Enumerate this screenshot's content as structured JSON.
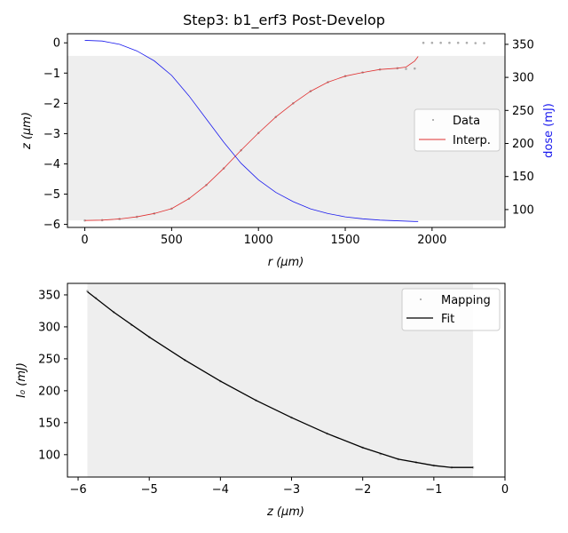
{
  "figure": {
    "title": "Step3: b1_erf3 Post-Develop"
  },
  "chart_data": [
    {
      "type": "scatter",
      "title": "Step3: b1_erf3 Post-Develop",
      "xlabel": "r (μm)",
      "ylabel": "z (μm)",
      "y2label": "dose (mJ)",
      "xlim": [
        -100,
        2420
      ],
      "ylim": [
        -6.1,
        0.3
      ],
      "y2lim": [
        73,
        366
      ],
      "xticks": [
        0,
        500,
        1000,
        1500,
        2000
      ],
      "yticks": [
        0,
        -1,
        -2,
        -3,
        -4,
        -5,
        -6
      ],
      "y2ticks": [
        100,
        150,
        200,
        250,
        300,
        350
      ],
      "shaded_region": {
        "x": [
          -100,
          2420
        ],
        "y": [
          -5.87,
          -0.43
        ]
      },
      "legend": {
        "position": "center-right",
        "entries": [
          "Data",
          "Interp."
        ]
      },
      "series": [
        {
          "name": "Data",
          "style": "dots",
          "color": "#999999",
          "x": [
            0,
            100,
            200,
            300,
            400,
            500,
            600,
            700,
            800,
            900,
            1000,
            1100,
            1200,
            1300,
            1400,
            1500,
            1600,
            1700,
            1800,
            1850,
            1900,
            1950,
            2000,
            2050,
            2100,
            2150,
            2200,
            2250,
            2300
          ],
          "y": [
            -5.87,
            -5.86,
            -5.82,
            -5.75,
            -5.64,
            -5.48,
            -5.15,
            -4.7,
            -4.15,
            -3.55,
            -2.98,
            -2.45,
            -2.0,
            -1.6,
            -1.3,
            -1.1,
            -0.98,
            -0.88,
            -0.84,
            -0.86,
            -0.85,
            0.0,
            0.0,
            0.0,
            0.0,
            0.0,
            0.0,
            -0.01,
            -0.01
          ]
        },
        {
          "name": "Interp.",
          "style": "line",
          "color": "#e03030",
          "x": [
            0,
            100,
            200,
            300,
            400,
            500,
            600,
            700,
            800,
            900,
            1000,
            1100,
            1200,
            1300,
            1400,
            1500,
            1600,
            1700,
            1800,
            1850,
            1900,
            1920
          ],
          "y": [
            -5.87,
            -5.86,
            -5.82,
            -5.75,
            -5.64,
            -5.48,
            -5.15,
            -4.7,
            -4.15,
            -3.55,
            -2.98,
            -2.45,
            -2.0,
            -1.6,
            -1.3,
            -1.1,
            -0.98,
            -0.88,
            -0.84,
            -0.8,
            -0.6,
            -0.45
          ]
        },
        {
          "name": "dose",
          "axis": "right",
          "style": "line",
          "color": "#1a1aee",
          "x": [
            0,
            100,
            200,
            300,
            400,
            500,
            600,
            700,
            800,
            900,
            1000,
            1100,
            1200,
            1300,
            1400,
            1500,
            1600,
            1700,
            1800,
            1900,
            1920
          ],
          "y": [
            356,
            355,
            350,
            340,
            325,
            303,
            272,
            237,
            202,
            170,
            145,
            126,
            112,
            101,
            94,
            89,
            86,
            84,
            83,
            82,
            82
          ]
        }
      ]
    },
    {
      "type": "scatter",
      "xlabel": "z (μm)",
      "ylabel": "I₀ (mJ)",
      "xlim": [
        -6.15,
        0
      ],
      "ylim": [
        65,
        368
      ],
      "xticks": [
        -6,
        -5,
        -4,
        -3,
        -2,
        -1,
        0
      ],
      "yticks": [
        100,
        150,
        200,
        250,
        300,
        350
      ],
      "shaded_region": {
        "x": [
          -5.87,
          -0.45
        ],
        "y": [
          65,
          368
        ]
      },
      "legend": {
        "position": "top-right",
        "entries": [
          "Mapping",
          "Fit"
        ]
      },
      "series": [
        {
          "name": "Mapping",
          "style": "dots",
          "color": "#999999",
          "x": [
            -5.87,
            -5.75,
            -5.5,
            -5.25,
            -5.0,
            -4.5,
            -4.0,
            -3.5,
            -3.0,
            -2.5,
            -2.0,
            -1.75,
            -1.5,
            -1.25,
            -1.0,
            -0.75,
            -0.45
          ],
          "y": [
            356,
            345,
            323,
            303,
            284,
            248,
            215,
            185,
            158,
            133,
            111,
            101,
            93,
            88,
            83,
            80,
            80
          ]
        },
        {
          "name": "Fit",
          "style": "line",
          "color": "#000000",
          "x": [
            -5.87,
            -5.5,
            -5.0,
            -4.5,
            -4.0,
            -3.5,
            -3.0,
            -2.5,
            -2.0,
            -1.5,
            -1.0,
            -0.75,
            -0.45
          ],
          "y": [
            355,
            323,
            284,
            248,
            215,
            185,
            158,
            133,
            111,
            93,
            83,
            80,
            80
          ]
        }
      ]
    }
  ]
}
